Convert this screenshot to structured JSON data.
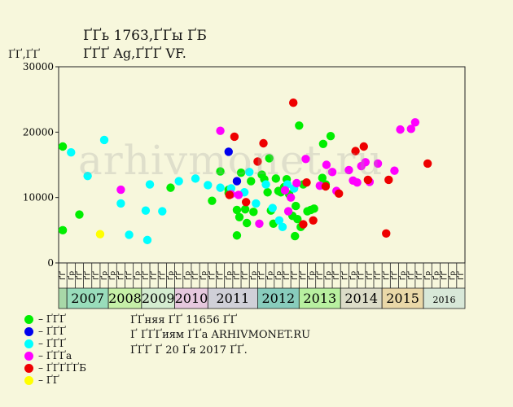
{
  "header": {
    "title_line1": "ҐҐь 1763,ҐҐы ҐБ",
    "title_line2": "ҐҐҐ Ag,ҐҐҐ VF.",
    "units": "ҐҐ,ҐҐ"
  },
  "watermark": "arhivmonet.ru",
  "legend": [
    {
      "color": "#00ee00",
      "label": "– ҐҐҐ"
    },
    {
      "color": "#0000ee",
      "label": "– ҐҐҐ"
    },
    {
      "color": "#00ffff",
      "label": "– ҐҐҐ"
    },
    {
      "color": "#ff00ff",
      "label": "– ҐҐҐа"
    },
    {
      "color": "#ee0000",
      "label": "– ҐҐҐҐҐБ"
    },
    {
      "color": "#ffff00",
      "label": "– ҐҐ"
    }
  ],
  "notes": [
    "ҐҐняя ҐҐ 11656 ҐҐ",
    "Ґ ҐҐҐиям ҐҐа ARHIVMONET.RU",
    "ҐҐҐ Ґ 20 Ґя 2017 ҐҐ."
  ],
  "chart_data": {
    "type": "scatter",
    "ylim": [
      0,
      30000
    ],
    "yticks": [
      0,
      10000,
      20000,
      30000
    ],
    "grid": false,
    "slot_count": 49,
    "slot_labels": [
      "ҐҐ",
      "Ґр",
      "ҐҐ",
      "ҐҐ",
      "ҐҐ",
      "Ґр",
      "Ґр",
      "ҐҐ",
      "ҐҐ",
      "Ґр",
      "ҐҐ",
      "ҐҐ",
      "ҐҐ",
      "Ґр",
      "ҐҐ",
      "Ґр",
      "ҐҐ",
      "Ґр",
      "ҐҐ",
      "ҐҐ",
      "Ґр",
      "ҐҐ",
      "ҐҐ",
      "Ґр",
      "ҐҐ",
      "Ґр",
      "Ґр",
      "ҐҐ",
      "ҐҐ",
      "ҐҐ",
      "Ґр",
      "ҐҐ",
      "Ґр",
      "ҐҐ",
      "ҐҐ",
      "Ґр",
      "ҐҐ",
      "ҐҐ",
      "ҐҐ",
      "ҐҐ",
      "ҐҐ",
      "Ґр",
      "ҐҐ",
      "ҐҐ",
      "Ґр",
      "Ґр",
      "ҐҐ",
      "Ґр",
      "ҐҐ"
    ],
    "years": [
      {
        "label": "",
        "start": 0,
        "end": 1,
        "color": "#a8d8a8"
      },
      {
        "label": "2007",
        "start": 1,
        "end": 6,
        "color": "#99ddbb"
      },
      {
        "label": "2008",
        "start": 6,
        "end": 10,
        "color": "#c6f0a8"
      },
      {
        "label": "2009",
        "start": 10,
        "end": 14,
        "color": "#d4ecd0"
      },
      {
        "label": "2010",
        "start": 14,
        "end": 18,
        "color": "#e6c8de"
      },
      {
        "label": "2011",
        "start": 18,
        "end": 24,
        "color": "#d0d0d8"
      },
      {
        "label": "2012",
        "start": 24,
        "end": 29,
        "color": "#88ccbc"
      },
      {
        "label": "2013",
        "start": 29,
        "end": 34,
        "color": "#b8f0a0"
      },
      {
        "label": "2014",
        "start": 34,
        "end": 39,
        "color": "#dcdcc8"
      },
      {
        "label": "2015",
        "start": 39,
        "end": 44,
        "color": "#ead8a8"
      },
      {
        "label": "2016",
        "start": 44,
        "end": 49,
        "color": "#d8e8d8"
      }
    ],
    "series": [
      {
        "name": "ҐҐҐ",
        "color": "#00ee00",
        "points": [
          [
            0.5,
            17800
          ],
          [
            0.5,
            5000
          ],
          [
            2.5,
            7400
          ],
          [
            13.5,
            11500
          ],
          [
            18.5,
            9500
          ],
          [
            19.5,
            14000
          ],
          [
            20.5,
            11200
          ],
          [
            20.5,
            10700
          ],
          [
            21.5,
            8100
          ],
          [
            21.5,
            4200
          ],
          [
            21.8,
            7000
          ],
          [
            22.0,
            13800
          ],
          [
            22.5,
            8200
          ],
          [
            22.7,
            6100
          ],
          [
            23.2,
            12500
          ],
          [
            23.5,
            7800
          ],
          [
            24.5,
            13500
          ],
          [
            24.8,
            12800
          ],
          [
            25.2,
            10800
          ],
          [
            25.4,
            16000
          ],
          [
            25.6,
            8000
          ],
          [
            25.9,
            6000
          ],
          [
            26.2,
            12900
          ],
          [
            26.5,
            11000
          ],
          [
            26.8,
            10800
          ],
          [
            27.2,
            11600
          ],
          [
            27.5,
            12800
          ],
          [
            27.8,
            10500
          ],
          [
            28.2,
            7200
          ],
          [
            28.5,
            4100
          ],
          [
            28.6,
            8700
          ],
          [
            28.8,
            6700
          ],
          [
            29.0,
            21000
          ],
          [
            29.2,
            5500
          ],
          [
            29.5,
            12000
          ],
          [
            30.0,
            7900
          ],
          [
            30.4,
            8100
          ],
          [
            30.8,
            8300
          ],
          [
            31.8,
            13000
          ],
          [
            31.9,
            18200
          ],
          [
            32.2,
            12000
          ],
          [
            32.8,
            19400
          ]
        ]
      },
      {
        "name": "ҐҐҐ",
        "color": "#0000ee",
        "points": [
          [
            20.5,
            17000
          ],
          [
            21.5,
            12500
          ]
        ]
      },
      {
        "name": "ҐҐҐ",
        "color": "#00ffff",
        "points": [
          [
            1.5,
            16900
          ],
          [
            3.5,
            13300
          ],
          [
            5.5,
            18800
          ],
          [
            7.5,
            9100
          ],
          [
            8.5,
            4300
          ],
          [
            10.5,
            8000
          ],
          [
            10.7,
            3500
          ],
          [
            11.0,
            12000
          ],
          [
            12.5,
            7900
          ],
          [
            14.5,
            12500
          ],
          [
            16.5,
            12900
          ],
          [
            18.0,
            11900
          ],
          [
            19.5,
            11500
          ],
          [
            20.8,
            11400
          ],
          [
            22.4,
            10800
          ],
          [
            23.0,
            13900
          ],
          [
            23.8,
            9100
          ],
          [
            25.0,
            12000
          ],
          [
            25.8,
            8400
          ],
          [
            26.6,
            6500
          ],
          [
            27.0,
            5500
          ],
          [
            27.6,
            12000
          ],
          [
            28.4,
            11400
          ]
        ]
      },
      {
        "name": "ҐҐҐа",
        "color": "#ff00ff",
        "points": [
          [
            7.5,
            11200
          ],
          [
            19.5,
            20200
          ],
          [
            20.8,
            10500
          ],
          [
            21.7,
            10400
          ],
          [
            24.2,
            6000
          ],
          [
            27.3,
            11100
          ],
          [
            27.7,
            7900
          ],
          [
            28.0,
            10000
          ],
          [
            28.7,
            12200
          ],
          [
            29.8,
            15900
          ],
          [
            31.5,
            11800
          ],
          [
            32.3,
            15000
          ],
          [
            33.0,
            13900
          ],
          [
            33.5,
            11000
          ],
          [
            35.0,
            14200
          ],
          [
            35.5,
            12600
          ],
          [
            36.0,
            12300
          ],
          [
            36.5,
            14800
          ],
          [
            37.0,
            15400
          ],
          [
            37.5,
            12400
          ],
          [
            38.5,
            15200
          ],
          [
            40.5,
            14100
          ],
          [
            41.2,
            20400
          ],
          [
            42.5,
            20500
          ],
          [
            43.0,
            21500
          ]
        ]
      },
      {
        "name": "ҐҐҐҐҐБ",
        "color": "#ee0000",
        "points": [
          [
            20.6,
            10400
          ],
          [
            21.2,
            19300
          ],
          [
            22.6,
            9300
          ],
          [
            24.0,
            15500
          ],
          [
            24.7,
            18300
          ],
          [
            28.3,
            24500
          ],
          [
            29.5,
            5900
          ],
          [
            29.9,
            12300
          ],
          [
            30.7,
            6500
          ],
          [
            32.2,
            11700
          ],
          [
            33.8,
            10600
          ],
          [
            35.8,
            17100
          ],
          [
            36.8,
            17800
          ],
          [
            37.3,
            12700
          ],
          [
            39.5,
            4500
          ],
          [
            39.8,
            12700
          ],
          [
            44.5,
            15200
          ]
        ]
      },
      {
        "name": "ҐҐ",
        "color": "#ffff00",
        "points": [
          [
            5.0,
            4400
          ]
        ]
      }
    ]
  }
}
